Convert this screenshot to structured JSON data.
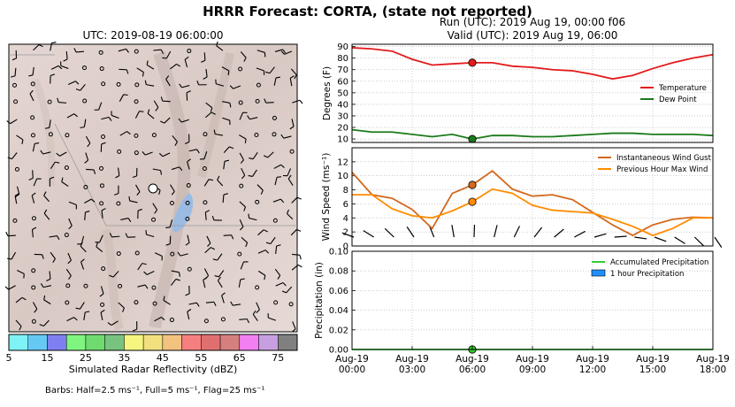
{
  "title": "HRRR Forecast: CORTA, (state not reported)",
  "map": {
    "title": "UTC: 2019-08-19 06:00:00",
    "colorbar_label": "Simulated Radar Reflectivity (dBZ)",
    "colorbar_ticks": [
      "5",
      "15",
      "25",
      "35",
      "45",
      "55",
      "65",
      "75"
    ],
    "colorbar_colors": [
      "#7ff2f5",
      "#66c8f5",
      "#7f7ff2",
      "#7ff57f",
      "#6fdb6f",
      "#77c37f",
      "#f5f57f",
      "#f2e07f",
      "#f2c27f",
      "#f57f7f",
      "#e07070",
      "#d67f7f",
      "#f27ff2",
      "#c79fe0",
      "#808080"
    ]
  },
  "run_text": "Run (UTC): 2019 Aug 19, 00:00 f06",
  "valid_text": "Valid (UTC): 2019 Aug 19, 06:00",
  "barbs_text": "Barbs: Half=2.5 ms⁻¹, Full=5 ms⁻¹, Flag=25 ms⁻¹",
  "colors": {
    "temperature": "#e31a1c",
    "dew_point": "#1a7a1a",
    "gust": "#d2691e",
    "max_wind": "#ff8c00",
    "accum_precip": "#33cc33",
    "hour_precip": "#1e90ff"
  },
  "chart_data": [
    {
      "type": "line",
      "ylabel": "Degrees (F)",
      "ylim": [
        7,
        92
      ],
      "yticks": [
        10,
        20,
        30,
        40,
        50,
        60,
        70,
        80,
        90
      ],
      "x": [
        0,
        1,
        2,
        3,
        4,
        5,
        6,
        7,
        8,
        9,
        10,
        11,
        12,
        13,
        14,
        15,
        16,
        17,
        18
      ],
      "legend_placement": "right",
      "grid": true,
      "series": [
        {
          "name": "Temperature",
          "values": [
            89,
            88,
            86,
            79,
            74,
            75,
            76,
            76,
            73,
            72,
            70,
            69,
            66,
            62,
            65,
            71,
            76,
            80,
            83
          ]
        },
        {
          "name": "Dew Point",
          "values": [
            18,
            16,
            16,
            14,
            12,
            14,
            10,
            13,
            13,
            12,
            12,
            13,
            14,
            15,
            15,
            14,
            14,
            14,
            13
          ]
        }
      ],
      "marker": {
        "x": 6,
        "values": [
          76,
          10
        ]
      }
    },
    {
      "type": "line",
      "ylabel": "Wind Speed (ms⁻¹)",
      "ylim": [
        0,
        14
      ],
      "yticks": [
        0,
        2,
        4,
        6,
        8,
        10,
        12
      ],
      "x": [
        0,
        1,
        2,
        3,
        4,
        5,
        6,
        7,
        8,
        9,
        10,
        11,
        12,
        13,
        14,
        15,
        16,
        17,
        18
      ],
      "legend_placement": "top-right",
      "grid": true,
      "series": [
        {
          "name": "Instantaneous Wind Gust",
          "values": [
            10.5,
            7.3,
            6.8,
            5.2,
            2.5,
            7.5,
            8.7,
            10.7,
            8.1,
            7.1,
            7.3,
            6.6,
            4.8,
            3.0,
            1.5,
            3.0,
            3.8,
            4.1,
            4.0
          ]
        },
        {
          "name": "Previous Hour Max Wind",
          "values": [
            7.3,
            7.3,
            5.3,
            4.3,
            4.0,
            5.0,
            6.3,
            8.1,
            7.5,
            5.8,
            5.1,
            4.9,
            4.7,
            3.8,
            2.8,
            1.5,
            2.5,
            4.0,
            4.0
          ]
        }
      ],
      "marker": {
        "x": 6,
        "values": [
          8.7,
          6.3
        ]
      }
    },
    {
      "type": "bar",
      "ylabel": "Precipitation (in)",
      "ylim": [
        0,
        0.1
      ],
      "yticks": [
        "0.00",
        "0.02",
        "0.04",
        "0.06",
        "0.08",
        "0.10"
      ],
      "x": [
        0,
        1,
        2,
        3,
        4,
        5,
        6,
        7,
        8,
        9,
        10,
        11,
        12,
        13,
        14,
        15,
        16,
        17,
        18
      ],
      "xtick_labels": [
        [
          "Aug-19",
          "00:00"
        ],
        [
          "Aug-19",
          "03:00"
        ],
        [
          "Aug-19",
          "06:00"
        ],
        [
          "Aug-19",
          "09:00"
        ],
        [
          "Aug-19",
          "12:00"
        ],
        [
          "Aug-19",
          "15:00"
        ],
        [
          "Aug-19",
          "18:00"
        ]
      ],
      "legend_placement": "top-right",
      "grid": true,
      "series": [
        {
          "name": "Accumulated Precipitation",
          "values": [
            0,
            0,
            0,
            0,
            0,
            0,
            0,
            0,
            0,
            0,
            0,
            0,
            0,
            0,
            0,
            0,
            0,
            0,
            0
          ]
        },
        {
          "name": "1 hour Precipitation",
          "values": [
            0,
            0,
            0,
            0,
            0,
            0,
            0,
            0,
            0,
            0,
            0,
            0,
            0,
            0,
            0,
            0,
            0,
            0,
            0
          ]
        }
      ],
      "marker": {
        "x": 6,
        "values": [
          0
        ]
      }
    }
  ]
}
